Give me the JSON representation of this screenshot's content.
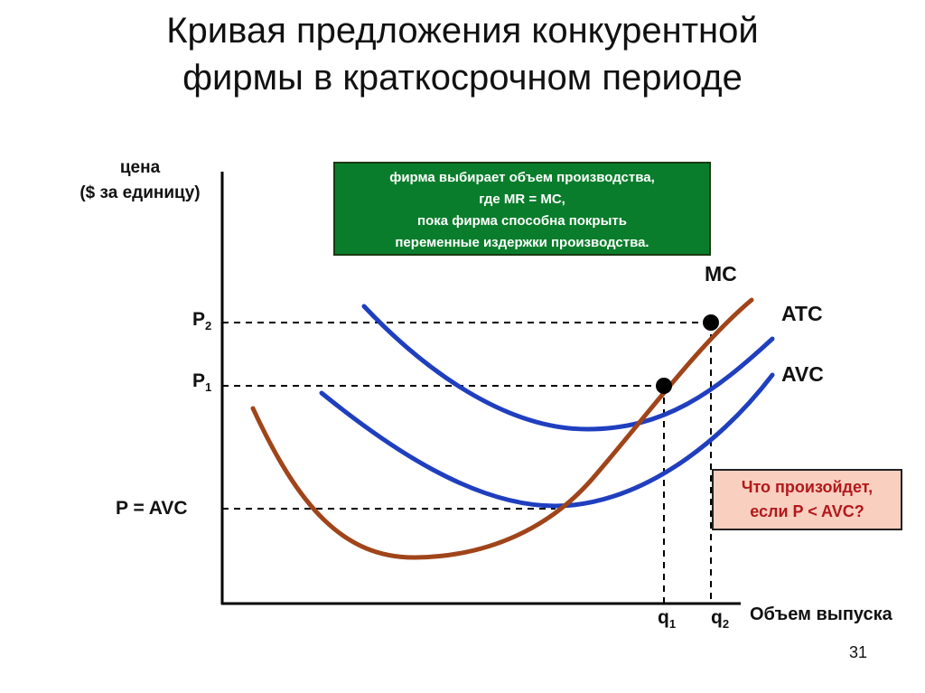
{
  "title": {
    "line1": "Кривая предложения конкурентной",
    "line2": "фирмы в краткосрочном периоде"
  },
  "axes": {
    "y_label_line1": "цена",
    "y_label_line2": "($ за единицу)",
    "x_label": "Объем выпуска"
  },
  "price_levels": {
    "p2": "P",
    "p2_sub": "2",
    "p1": "P",
    "p1_sub": "1",
    "p_avc": "P = AVC"
  },
  "quantities": {
    "q1": "q",
    "q1_sub": "1",
    "q2": "q",
    "q2_sub": "2"
  },
  "curves": {
    "mc": "MC",
    "atc": "ATC",
    "avc": "AVC"
  },
  "info_box": {
    "line1": "фирма выбирает объем производства,",
    "line2": "где  MR = MC,",
    "line3": "пока фирма способна покрыть",
    "line4": "переменные издержки производства."
  },
  "question_box": {
    "line1": "Что произойдет,",
    "line2": "если P < AVC?"
  },
  "colors": {
    "mc": "#a0441a",
    "atc": "#1f3fbf",
    "avc": "#1f3fbf",
    "info_box_bg": "#0a7d2c",
    "question_box_bg": "#f9cfbf",
    "question_text": "#b3181c"
  },
  "page_number": "31"
}
